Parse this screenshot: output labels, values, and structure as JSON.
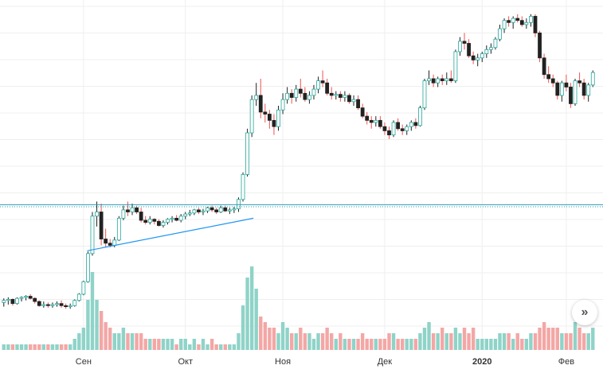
{
  "colors": {
    "up_candle": "#26a69a",
    "up_wick": "#222222",
    "down_candle": "#ef5350",
    "body_up": "#ffffff",
    "body_down": "#222222",
    "volume_up": "#8fd3c8",
    "volume_down": "#f3a7a5",
    "grid": "#efefef",
    "trendline": "#2196f3",
    "level_line": "#2a9bb0",
    "axis_text": "#333333"
  },
  "scroll_button": {
    "icon": "chevrons-right-icon",
    "glyph": "»"
  },
  "chart_data": {
    "type": "candlestick",
    "x_tick_labels": [
      "Сен",
      "Окт",
      "Ноя",
      "Дек",
      "2020",
      "Фев"
    ],
    "x_tick_bold": [
      "2020"
    ],
    "grid": true,
    "ohlcv": [
      [
        -0.15,
        0.05,
        -0.35,
        -0.05,
        1
      ],
      [
        -0.05,
        0.1,
        -0.25,
        0.0,
        1
      ],
      [
        0.0,
        0.05,
        -0.3,
        -0.2,
        1
      ],
      [
        -0.2,
        0.1,
        -0.25,
        0.05,
        1
      ],
      [
        0.05,
        0.15,
        -0.1,
        0.1,
        1
      ],
      [
        0.1,
        0.2,
        -0.05,
        0.15,
        1
      ],
      [
        0.15,
        0.25,
        0.0,
        0.05,
        1
      ],
      [
        0.05,
        0.1,
        -0.2,
        -0.1,
        1
      ],
      [
        -0.1,
        -0.05,
        -0.35,
        -0.3,
        1
      ],
      [
        -0.3,
        -0.1,
        -0.4,
        -0.25,
        1
      ],
      [
        -0.25,
        -0.15,
        -0.4,
        -0.3,
        1
      ],
      [
        -0.3,
        -0.15,
        -0.4,
        -0.25,
        1
      ],
      [
        -0.25,
        -0.1,
        -0.35,
        -0.2,
        1
      ],
      [
        -0.2,
        -0.05,
        -0.4,
        -0.3,
        1
      ],
      [
        -0.3,
        -0.2,
        -0.45,
        -0.35,
        1
      ],
      [
        -0.35,
        -0.2,
        -0.45,
        -0.3,
        1
      ],
      [
        -0.3,
        0.0,
        -0.35,
        -0.05,
        2
      ],
      [
        -0.05,
        0.3,
        -0.1,
        0.25,
        3
      ],
      [
        0.25,
        0.9,
        0.2,
        0.85,
        4
      ],
      [
        0.85,
        2.3,
        0.8,
        2.2,
        9
      ],
      [
        2.2,
        4.2,
        2.1,
        4.0,
        14
      ],
      [
        4.0,
        4.7,
        3.5,
        4.2,
        9
      ],
      [
        4.2,
        4.6,
        2.6,
        2.9,
        7
      ],
      [
        2.9,
        3.4,
        2.5,
        2.7,
        5
      ],
      [
        2.7,
        2.9,
        2.5,
        2.6,
        4
      ],
      [
        2.6,
        3.0,
        2.5,
        2.85,
        3
      ],
      [
        2.85,
        4.0,
        2.8,
        3.9,
        3
      ],
      [
        3.9,
        4.5,
        3.8,
        4.3,
        4
      ],
      [
        4.3,
        4.7,
        4.0,
        4.2,
        3
      ],
      [
        4.2,
        4.6,
        4.05,
        4.4,
        3
      ],
      [
        4.4,
        4.5,
        4.1,
        4.2,
        3
      ],
      [
        4.2,
        4.4,
        3.7,
        3.8,
        3
      ],
      [
        3.8,
        4.0,
        3.6,
        3.7,
        2
      ],
      [
        3.7,
        4.0,
        3.6,
        3.85,
        2
      ],
      [
        3.85,
        3.9,
        3.6,
        3.75,
        2
      ],
      [
        3.75,
        3.85,
        3.5,
        3.55,
        2
      ],
      [
        3.55,
        3.8,
        3.45,
        3.7,
        2
      ],
      [
        3.7,
        3.9,
        3.6,
        3.85,
        2
      ],
      [
        3.85,
        4.0,
        3.7,
        3.9,
        2
      ],
      [
        3.9,
        4.05,
        3.75,
        3.8,
        1
      ],
      [
        3.8,
        4.1,
        3.7,
        4.0,
        2
      ],
      [
        4.0,
        4.2,
        3.85,
        4.1,
        2
      ],
      [
        4.1,
        4.3,
        4.0,
        4.15,
        1
      ],
      [
        4.15,
        4.35,
        4.05,
        4.3,
        2
      ],
      [
        4.3,
        4.4,
        4.1,
        4.2,
        1
      ],
      [
        4.2,
        4.35,
        4.05,
        4.25,
        2
      ],
      [
        4.25,
        4.45,
        4.15,
        4.4,
        1
      ],
      [
        4.4,
        4.5,
        4.2,
        4.3,
        2
      ],
      [
        4.3,
        4.4,
        4.1,
        4.2,
        1
      ],
      [
        4.2,
        4.5,
        4.15,
        4.4,
        1
      ],
      [
        4.4,
        4.5,
        4.2,
        4.25,
        1
      ],
      [
        4.25,
        4.4,
        4.1,
        4.3,
        1
      ],
      [
        4.3,
        4.45,
        4.15,
        4.35,
        1
      ],
      [
        4.35,
        4.9,
        4.2,
        4.8,
        3
      ],
      [
        4.8,
        6.1,
        4.7,
        6.0,
        8
      ],
      [
        6.0,
        8.2,
        5.9,
        8.0,
        13
      ],
      [
        8.0,
        9.8,
        7.8,
        9.6,
        15
      ],
      [
        9.6,
        10.4,
        9.3,
        9.8,
        11
      ],
      [
        9.8,
        10.6,
        8.7,
        9.0,
        6
      ],
      [
        9.0,
        9.4,
        8.5,
        8.9,
        5
      ],
      [
        8.9,
        9.1,
        8.2,
        8.6,
        4
      ],
      [
        8.6,
        8.9,
        7.9,
        8.3,
        4
      ],
      [
        8.3,
        9.3,
        8.1,
        9.1,
        3
      ],
      [
        9.1,
        9.9,
        8.9,
        9.6,
        5
      ],
      [
        9.6,
        10.2,
        9.4,
        9.9,
        4
      ],
      [
        9.9,
        10.1,
        9.4,
        9.7,
        3
      ],
      [
        9.7,
        10.3,
        9.5,
        10.1,
        3
      ],
      [
        10.1,
        10.6,
        9.7,
        9.9,
        4
      ],
      [
        9.9,
        10.2,
        9.5,
        9.6,
        3
      ],
      [
        9.6,
        10.0,
        9.4,
        9.8,
        3
      ],
      [
        9.8,
        10.3,
        9.6,
        10.1,
        2
      ],
      [
        10.1,
        10.7,
        9.9,
        10.5,
        3
      ],
      [
        10.5,
        11.0,
        10.2,
        10.4,
        3
      ],
      [
        10.4,
        10.6,
        9.8,
        9.9,
        4
      ],
      [
        9.9,
        10.2,
        9.6,
        9.8,
        3
      ],
      [
        9.8,
        10.0,
        9.6,
        9.85,
        2
      ],
      [
        9.85,
        10.0,
        9.5,
        9.7,
        3
      ],
      [
        9.7,
        10.0,
        9.5,
        9.8,
        2
      ],
      [
        9.8,
        9.9,
        9.4,
        9.5,
        2
      ],
      [
        9.5,
        9.8,
        9.3,
        9.6,
        2
      ],
      [
        9.6,
        9.8,
        9.1,
        9.2,
        2
      ],
      [
        9.2,
        9.4,
        8.7,
        8.8,
        3
      ],
      [
        8.8,
        9.0,
        8.4,
        8.6,
        2
      ],
      [
        8.6,
        8.8,
        8.2,
        8.5,
        2
      ],
      [
        8.5,
        8.8,
        8.3,
        8.6,
        2
      ],
      [
        8.6,
        8.8,
        8.2,
        8.3,
        2
      ],
      [
        8.3,
        8.5,
        7.9,
        8.1,
        2
      ],
      [
        8.1,
        8.3,
        7.7,
        7.9,
        3
      ],
      [
        7.9,
        8.6,
        7.8,
        8.5,
        3
      ],
      [
        8.5,
        8.7,
        8.1,
        8.2,
        2
      ],
      [
        8.2,
        8.4,
        7.9,
        8.1,
        2
      ],
      [
        8.1,
        8.4,
        7.9,
        8.3,
        2
      ],
      [
        8.3,
        8.6,
        8.1,
        8.5,
        2
      ],
      [
        8.5,
        8.7,
        8.2,
        8.35,
        2
      ],
      [
        8.35,
        9.3,
        8.3,
        9.2,
        3
      ],
      [
        9.2,
        10.6,
        9.1,
        10.5,
        4
      ],
      [
        10.5,
        11.0,
        10.3,
        10.6,
        5
      ],
      [
        10.6,
        10.8,
        10.2,
        10.4,
        3
      ],
      [
        10.4,
        10.7,
        10.2,
        10.6,
        3
      ],
      [
        10.6,
        10.8,
        10.3,
        10.5,
        4
      ],
      [
        10.5,
        10.9,
        10.3,
        10.6,
        3
      ],
      [
        10.6,
        11.0,
        10.4,
        10.5,
        3
      ],
      [
        10.5,
        12.0,
        10.4,
        11.9,
        4
      ],
      [
        11.9,
        12.6,
        11.7,
        12.4,
        3
      ],
      [
        12.4,
        12.8,
        12.0,
        12.3,
        4
      ],
      [
        12.3,
        12.5,
        11.6,
        11.7,
        3
      ],
      [
        11.7,
        11.9,
        11.3,
        11.5,
        4
      ],
      [
        11.5,
        11.8,
        11.2,
        11.6,
        2
      ],
      [
        11.6,
        11.9,
        11.4,
        11.8,
        2
      ],
      [
        11.8,
        12.2,
        11.6,
        12.0,
        2
      ],
      [
        12.0,
        12.3,
        11.8,
        12.1,
        2
      ],
      [
        12.1,
        12.6,
        12.0,
        12.5,
        2
      ],
      [
        12.5,
        13.2,
        12.4,
        13.0,
        3
      ],
      [
        13.0,
        13.5,
        12.8,
        13.4,
        3
      ],
      [
        13.4,
        13.6,
        13.1,
        13.3,
        3
      ],
      [
        13.3,
        13.6,
        13.0,
        13.5,
        2
      ],
      [
        13.5,
        13.7,
        13.3,
        13.4,
        3
      ],
      [
        13.4,
        13.6,
        13.1,
        13.2,
        2
      ],
      [
        13.2,
        13.5,
        13.0,
        13.3,
        2
      ],
      [
        13.3,
        13.7,
        13.1,
        13.6,
        3
      ],
      [
        13.6,
        13.7,
        12.6,
        12.8,
        3
      ],
      [
        12.8,
        12.9,
        11.4,
        11.6,
        4
      ],
      [
        11.6,
        11.8,
        10.6,
        10.8,
        5
      ],
      [
        10.8,
        11.2,
        10.4,
        10.6,
        4
      ],
      [
        10.6,
        10.8,
        10.2,
        10.4,
        4
      ],
      [
        10.4,
        10.5,
        9.6,
        9.8,
        4
      ],
      [
        9.8,
        10.5,
        9.5,
        10.4,
        3
      ],
      [
        10.4,
        10.8,
        10.0,
        10.2,
        3
      ],
      [
        10.2,
        10.4,
        9.2,
        9.4,
        3
      ],
      [
        9.4,
        10.6,
        9.3,
        10.5,
        5
      ],
      [
        10.5,
        10.9,
        10.2,
        10.4,
        4
      ],
      [
        10.4,
        10.6,
        9.6,
        9.8,
        3
      ],
      [
        9.8,
        10.4,
        9.5,
        10.3,
        3
      ],
      [
        10.3,
        11.0,
        10.2,
        10.9,
        4
      ]
    ],
    "ylim": [
      -0.9,
      14.0
    ],
    "volume_max": 15,
    "horizontal_levels": [
      4.55,
      4.45
    ],
    "trendline": {
      "from_index": 21,
      "from_value": 2.45,
      "to_index": 56,
      "to_value": 3.9
    }
  }
}
